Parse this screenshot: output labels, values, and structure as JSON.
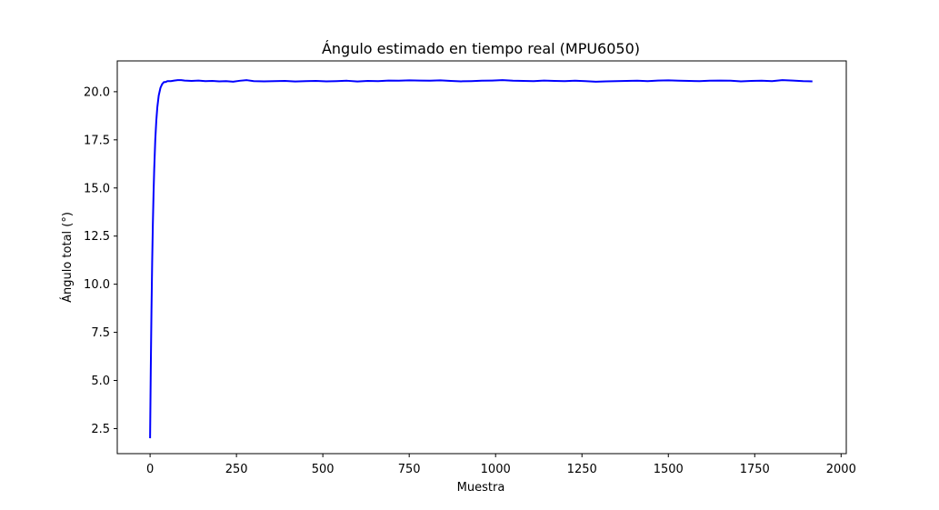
{
  "chart_data": {
    "type": "line",
    "title": "Ángulo estimado en tiempo real (MPU6050)",
    "xlabel": "Muestra",
    "ylabel": "Ángulo total (°)",
    "xlim": [
      -95,
      2015
    ],
    "ylim": [
      1.2,
      21.6
    ],
    "x_ticks": [
      0,
      250,
      500,
      750,
      1000,
      1250,
      1500,
      1750,
      2000
    ],
    "x_tick_labels": [
      "0",
      "250",
      "500",
      "750",
      "1000",
      "1250",
      "1500",
      "1750",
      "2000"
    ],
    "y_ticks": [
      2.5,
      5.0,
      7.5,
      10.0,
      12.5,
      15.0,
      17.5,
      20.0
    ],
    "y_tick_labels": [
      "2.5",
      "5.0",
      "7.5",
      "10.0",
      "12.5",
      "15.0",
      "17.5",
      "20.0"
    ],
    "grid": false,
    "legend": "none",
    "series": [
      {
        "color": "#0000ff",
        "x": [
          0,
          2,
          4,
          6,
          8,
          10,
          12,
          15,
          18,
          21,
          25,
          30,
          35,
          40,
          45,
          50,
          60,
          70,
          80,
          90,
          100,
          120,
          140,
          160,
          180,
          200,
          220,
          240,
          260,
          280,
          300,
          330,
          360,
          390,
          420,
          450,
          480,
          510,
          540,
          570,
          600,
          630,
          660,
          690,
          720,
          750,
          780,
          810,
          840,
          870,
          900,
          930,
          960,
          990,
          1020,
          1050,
          1080,
          1110,
          1140,
          1170,
          1200,
          1230,
          1260,
          1290,
          1320,
          1350,
          1380,
          1410,
          1440,
          1470,
          1500,
          1530,
          1560,
          1590,
          1620,
          1650,
          1680,
          1710,
          1740,
          1770,
          1800,
          1830,
          1860,
          1890,
          1917
        ],
        "y": [
          2.0,
          5.6,
          8.6,
          11.1,
          13.1,
          14.7,
          16.0,
          17.5,
          18.5,
          19.2,
          19.8,
          20.2,
          20.4,
          20.5,
          20.5,
          20.55,
          20.55,
          20.58,
          20.6,
          20.6,
          20.58,
          20.56,
          20.58,
          20.55,
          20.56,
          20.54,
          20.55,
          20.52,
          20.57,
          20.6,
          20.55,
          20.54,
          20.55,
          20.56,
          20.53,
          20.55,
          20.56,
          20.54,
          20.55,
          20.57,
          20.53,
          20.56,
          20.55,
          20.58,
          20.57,
          20.59,
          20.58,
          20.57,
          20.59,
          20.56,
          20.54,
          20.55,
          20.57,
          20.58,
          20.6,
          20.57,
          20.56,
          20.55,
          20.58,
          20.56,
          20.55,
          20.57,
          20.55,
          20.52,
          20.54,
          20.55,
          20.56,
          20.57,
          20.55,
          20.58,
          20.59,
          20.57,
          20.56,
          20.55,
          20.57,
          20.58,
          20.57,
          20.54,
          20.56,
          20.57,
          20.55,
          20.6,
          20.58,
          20.55,
          20.54
        ]
      }
    ]
  }
}
